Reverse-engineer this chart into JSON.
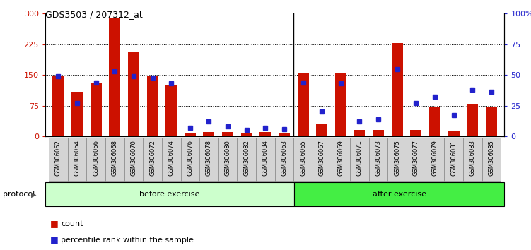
{
  "title": "GDS3503 / 207312_at",
  "samples": [
    "GSM306062",
    "GSM306064",
    "GSM306066",
    "GSM306068",
    "GSM306070",
    "GSM306072",
    "GSM306074",
    "GSM306076",
    "GSM306078",
    "GSM306080",
    "GSM306082",
    "GSM306084",
    "GSM306063",
    "GSM306065",
    "GSM306067",
    "GSM306069",
    "GSM306071",
    "GSM306073",
    "GSM306075",
    "GSM306077",
    "GSM306079",
    "GSM306081",
    "GSM306083",
    "GSM306085"
  ],
  "count": [
    148,
    108,
    130,
    290,
    205,
    148,
    125,
    7,
    10,
    10,
    7,
    10,
    7,
    155,
    30,
    155,
    15,
    15,
    228,
    15,
    72,
    12,
    80,
    70
  ],
  "percentile": [
    49,
    27,
    44,
    53,
    49,
    48,
    43,
    7,
    12,
    8,
    5,
    7,
    6,
    44,
    20,
    43,
    12,
    14,
    55,
    27,
    32,
    17,
    38,
    36
  ],
  "n_before": 13,
  "group_before_label": "before exercise",
  "group_after_label": "after exercise",
  "protocol_label": "protocol",
  "legend_count_label": "count",
  "legend_pct_label": "percentile rank within the sample",
  "bar_color": "#cc1100",
  "marker_color": "#2222cc",
  "group_before_color": "#ccffcc",
  "group_after_color": "#44ee44",
  "left_yticks": [
    0,
    75,
    150,
    225,
    300
  ],
  "right_yticks": [
    0,
    25,
    50,
    75,
    100
  ],
  "right_yticklabels": [
    "0",
    "25",
    "50",
    "75",
    "100%"
  ],
  "cell_color": "#d4d4d4",
  "cell_edge_color": "#888888"
}
